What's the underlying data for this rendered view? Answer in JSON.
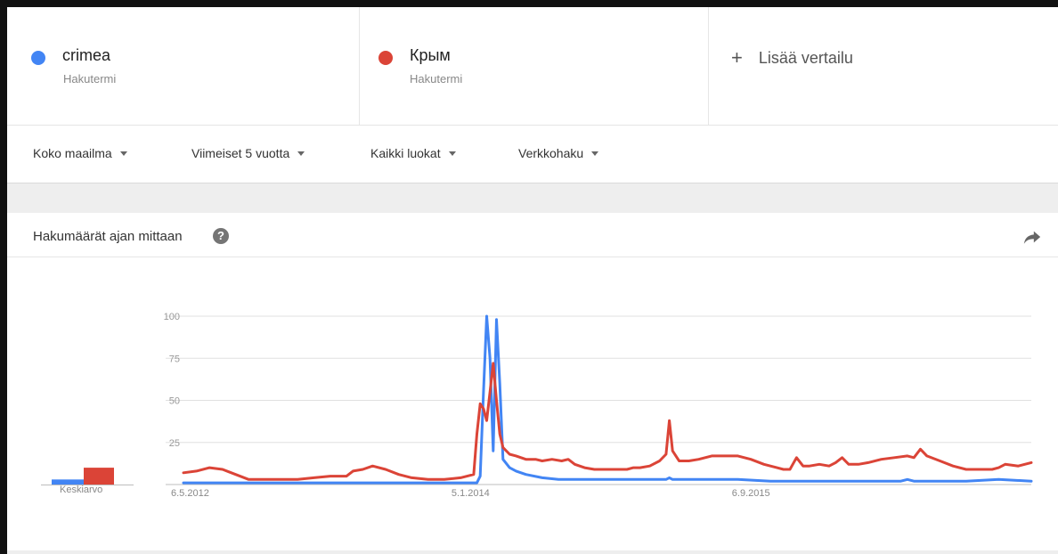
{
  "terms": [
    {
      "name": "crimea",
      "subtitle": "Hakutermi",
      "color": "#4285f4"
    },
    {
      "name": "Крым",
      "subtitle": "Hakutermi",
      "color": "#db4437"
    }
  ],
  "add_compare": {
    "plus": "+",
    "label": "Lisää vertailu"
  },
  "filters": [
    {
      "label": "Koko maailma"
    },
    {
      "label": "Viimeiset 5 vuotta"
    },
    {
      "label": "Kaikki luokat"
    },
    {
      "label": "Verkkohaku"
    }
  ],
  "card": {
    "title": "Hakumäärät ajan mittaan",
    "help_glyph": "?"
  },
  "averages_label": "Keskiarvo",
  "colors": {
    "blue": "#4285f4",
    "red": "#db4437",
    "grid": "#e0e0e0"
  },
  "chart_data": {
    "type": "line",
    "y_ticks": [
      25,
      50,
      75,
      100
    ],
    "ylim": [
      0,
      100
    ],
    "x_ticks": [
      "6.5.2012",
      "5.1.2014",
      "6.9.2015"
    ],
    "x_tick_positions": [
      0,
      86,
      172
    ],
    "n_weeks": 260,
    "averages": {
      "crimea": 3,
      "Крым": 10
    },
    "series": [
      {
        "name": "crimea",
        "points": [
          [
            0,
            1
          ],
          [
            86,
            1
          ],
          [
            90,
            1
          ],
          [
            91,
            5
          ],
          [
            92,
            55
          ],
          [
            93,
            100
          ],
          [
            94,
            75
          ],
          [
            95,
            20
          ],
          [
            96,
            98
          ],
          [
            97,
            60
          ],
          [
            98,
            15
          ],
          [
            100,
            10
          ],
          [
            102,
            8
          ],
          [
            105,
            6
          ],
          [
            110,
            4
          ],
          [
            115,
            3
          ],
          [
            120,
            3
          ],
          [
            130,
            3
          ],
          [
            140,
            3
          ],
          [
            148,
            3
          ],
          [
            149,
            4
          ],
          [
            150,
            3
          ],
          [
            160,
            3
          ],
          [
            170,
            3
          ],
          [
            180,
            2
          ],
          [
            190,
            2
          ],
          [
            200,
            2
          ],
          [
            210,
            2
          ],
          [
            220,
            2
          ],
          [
            222,
            3
          ],
          [
            224,
            2
          ],
          [
            230,
            2
          ],
          [
            240,
            2
          ],
          [
            250,
            3
          ],
          [
            260,
            2
          ]
        ]
      },
      {
        "name": "Крым",
        "points": [
          [
            0,
            7
          ],
          [
            4,
            8
          ],
          [
            8,
            10
          ],
          [
            12,
            9
          ],
          [
            16,
            6
          ],
          [
            20,
            3
          ],
          [
            25,
            3
          ],
          [
            30,
            3
          ],
          [
            35,
            3
          ],
          [
            40,
            4
          ],
          [
            45,
            5
          ],
          [
            50,
            5
          ],
          [
            52,
            8
          ],
          [
            55,
            9
          ],
          [
            58,
            11
          ],
          [
            62,
            9
          ],
          [
            66,
            6
          ],
          [
            70,
            4
          ],
          [
            75,
            3
          ],
          [
            80,
            3
          ],
          [
            85,
            4
          ],
          [
            89,
            6
          ],
          [
            90,
            30
          ],
          [
            91,
            48
          ],
          [
            92,
            45
          ],
          [
            93,
            38
          ],
          [
            94,
            55
          ],
          [
            95,
            72
          ],
          [
            96,
            50
          ],
          [
            97,
            30
          ],
          [
            98,
            22
          ],
          [
            100,
            18
          ],
          [
            102,
            17
          ],
          [
            105,
            15
          ],
          [
            108,
            15
          ],
          [
            110,
            14
          ],
          [
            113,
            15
          ],
          [
            116,
            14
          ],
          [
            118,
            15
          ],
          [
            120,
            12
          ],
          [
            123,
            10
          ],
          [
            126,
            9
          ],
          [
            130,
            9
          ],
          [
            133,
            9
          ],
          [
            136,
            9
          ],
          [
            138,
            10
          ],
          [
            140,
            10
          ],
          [
            143,
            11
          ],
          [
            146,
            14
          ],
          [
            148,
            18
          ],
          [
            149,
            38
          ],
          [
            150,
            20
          ],
          [
            152,
            14
          ],
          [
            155,
            14
          ],
          [
            158,
            15
          ],
          [
            162,
            17
          ],
          [
            166,
            17
          ],
          [
            170,
            17
          ],
          [
            174,
            15
          ],
          [
            178,
            12
          ],
          [
            182,
            10
          ],
          [
            184,
            9
          ],
          [
            186,
            9
          ],
          [
            188,
            16
          ],
          [
            190,
            11
          ],
          [
            192,
            11
          ],
          [
            195,
            12
          ],
          [
            198,
            11
          ],
          [
            200,
            13
          ],
          [
            202,
            16
          ],
          [
            204,
            12
          ],
          [
            207,
            12
          ],
          [
            210,
            13
          ],
          [
            214,
            15
          ],
          [
            218,
            16
          ],
          [
            222,
            17
          ],
          [
            224,
            16
          ],
          [
            226,
            21
          ],
          [
            228,
            17
          ],
          [
            232,
            14
          ],
          [
            236,
            11
          ],
          [
            240,
            9
          ],
          [
            244,
            9
          ],
          [
            248,
            9
          ],
          [
            250,
            10
          ],
          [
            252,
            12
          ],
          [
            256,
            11
          ],
          [
            260,
            13
          ]
        ]
      }
    ]
  }
}
